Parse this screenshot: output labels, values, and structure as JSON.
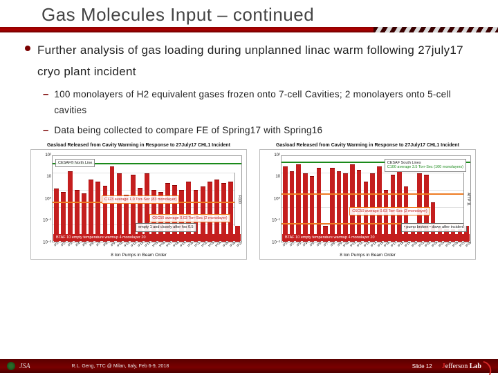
{
  "title": "Gas Molecules Input – continued",
  "bullet_main": "Further analysis of gas loading during unplanned linac warm following 27july17 cryo plant incident",
  "sub_a": "100 monolayers of H2 equivalent gases frozen onto 7-cell Cavities; 2 monolayers onto 5-cell cavities",
  "sub_b": "Data being collected to compare FE of Spring17 with Spring16",
  "chart_left": {
    "title": "Gasload Released from Cavity Warming in Response to 27July17 CHL1 Incident",
    "y_label": "Integrated Pump Pressure [Torr-Sec]",
    "x_label": "8 Ion Pumps in Beam Order",
    "source_tag": "R100",
    "y_ticks": [
      "10²",
      "10",
      "10⁰",
      "10⁻¹",
      "10⁻²"
    ],
    "annot_a": {
      "text": "CESAF® North Line",
      "color": "#111"
    },
    "annot_b": {
      "text": "C123 average\n1.0 Torr-Sec\n(83 monolayer)",
      "color": "#ee7b22"
    },
    "annot_c": {
      "text": "C6C50 average\n0.03 Torr-Sec\n(2 monolayer)",
      "color": "#ee7b22"
    },
    "note_box": {
      "text": "empty 1 and\nclosely after hrs 0.5"
    },
    "bottom_label": "BTAF 10 empty temperature warmup 4 monolayer 20",
    "bars": [
      62,
      58,
      82,
      60,
      56,
      72,
      70,
      65,
      88,
      80,
      55,
      78,
      63,
      80,
      60,
      58,
      68,
      66,
      60,
      70,
      60,
      64,
      70,
      72,
      68,
      70,
      74
    ],
    "bar_color": "#c41e1e",
    "ref_green": 0.9,
    "ref_orange": 0.45,
    "grid_color": "#e2e2e2"
  },
  "chart_right": {
    "title": "Gasload Released from Cavity Warming in Response to 27July17 CHL1 Incident",
    "y_label": "Integrated Pump Pressure [Torr-Sec]",
    "x_label": "8 Ion Pumps in Beam Order",
    "source_tag": "ATTP 11",
    "y_ticks": [
      "10²",
      "10",
      "10⁰",
      "10⁻¹",
      "10⁻²"
    ],
    "legend": {
      "text": "CESAF South Lines",
      "items": [
        "C100 average 3.5 Torr-Sec (100 monolayers)"
      ]
    },
    "annot_c": {
      "text": "C6C50 average\n0.03 Torr-Sec\n(2 monolayer)",
      "color": "#ee7b22"
    },
    "note_box": {
      "text": "• pump broken\n• down after incident"
    },
    "bottom_label": "BTAF 10 empty temperature warmup 4 monolayer 20",
    "bars": [
      88,
      82,
      90,
      80,
      76,
      86,
      18,
      86,
      82,
      80,
      90,
      84,
      70,
      80,
      88,
      60,
      78,
      86,
      64,
      14,
      80,
      78,
      46,
      16,
      14,
      14,
      14,
      42
    ],
    "bar_color": "#c41e1e",
    "ref_green": 0.92,
    "ref_orange1": 0.55,
    "ref_orange2": 0.2,
    "grid_color": "#e2e2e2"
  },
  "footer": {
    "credits": "R.L. Geng, TTC @ Milan, Italy, Feb 6-9, 2018",
    "slide": "Slide 12",
    "lab": "Jefferson Lab"
  }
}
